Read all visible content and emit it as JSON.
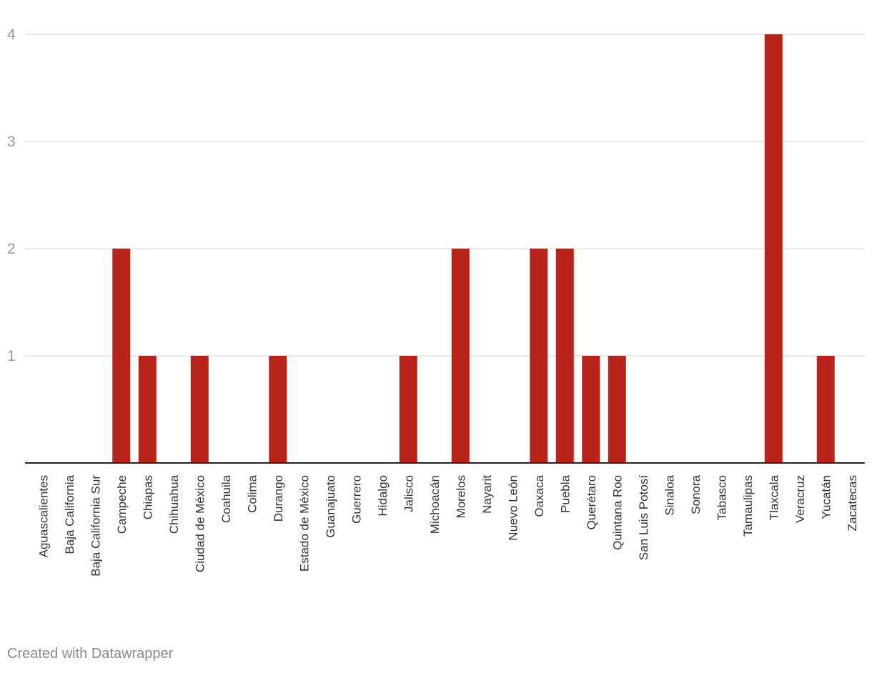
{
  "chart_data": {
    "type": "bar",
    "title": "",
    "xlabel": "",
    "ylabel": "",
    "ylim": [
      0,
      4
    ],
    "yticks": [
      1,
      2,
      3,
      4
    ],
    "grid": true,
    "bar_color": "#b8231a",
    "categories": [
      "Aguascalientes",
      "Baja California",
      "Baja California Sur",
      "Campeche",
      "Chiapas",
      "Chihuahua",
      "Ciudad de México",
      "Coahuila",
      "Colima",
      "Durango",
      "Estado de México",
      "Guanajuato",
      "Guerrero",
      "Hidalgo",
      "Jalisco",
      "Michoacán",
      "Morelos",
      "Nayarit",
      "Nuevo León",
      "Oaxaca",
      "Puebla",
      "Querétaro",
      "Quintana Roo",
      "San Luis Potosí",
      "Sinaloa",
      "Sonora",
      "Tabasco",
      "Tamaulipas",
      "Tlaxcala",
      "Veracruz",
      "Yucatán",
      "Zacatecas"
    ],
    "values": [
      0,
      0,
      0,
      2,
      1,
      0,
      1,
      0,
      0,
      1,
      0,
      0,
      0,
      0,
      1,
      0,
      2,
      0,
      0,
      2,
      2,
      1,
      1,
      0,
      0,
      0,
      0,
      0,
      4,
      0,
      1,
      0
    ]
  },
  "footer": {
    "credit": "Created with Datawrapper"
  }
}
